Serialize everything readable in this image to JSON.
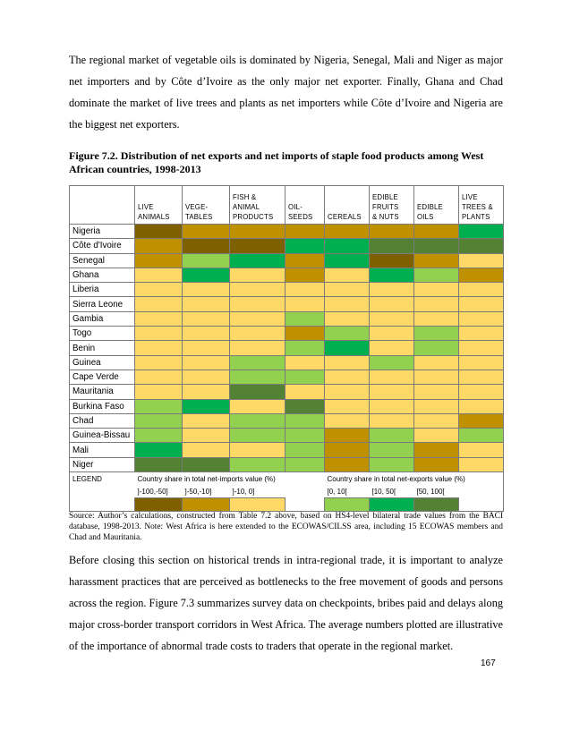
{
  "paragraph1": "The regional market of vegetable oils is dominated by Nigeria, Senegal, Mali and Niger as major net importers and by Côte d’Ivoire as the only major net exporter. Finally, Ghana and Chad dominate the market of live trees and plants as net importers while Côte d’Ivoire and Nigeria are the biggest net exporters.",
  "figure_title": "Figure 7.2. Distribution of net exports and net imports of staple food products among West African countries, 1998-2013",
  "table": {
    "headers": [
      "",
      "LIVE ANIMALS",
      "VEGE- TABLES",
      "FISH & ANIMAL PRODUCTS",
      "OIL- SEEDS",
      "CEREALS",
      "EDIBLE FRUITS & NUTS",
      "EDIBLE OILS",
      "LIVE TREES & PLANTS"
    ],
    "header_lines": [
      [
        "",
        ""
      ],
      [
        "",
        "LIVE",
        "ANIMALS"
      ],
      [
        "",
        "VEGE-",
        "TABLES"
      ],
      [
        "FISH &",
        "ANIMAL",
        "PRODUCTS"
      ],
      [
        "",
        "OIL-",
        "SEEDS"
      ],
      [
        "",
        "",
        "CEREALS"
      ],
      [
        "EDIBLE",
        "FRUITS",
        "& NUTS"
      ],
      [
        "",
        "EDIBLE",
        "OILS"
      ],
      [
        "LIVE",
        "TREES &",
        "PLANTS"
      ]
    ],
    "colors": {
      "imp_high": "#7f6000",
      "imp_mid": "#bf9000",
      "imp_low": "#ffd966",
      "exp_low": "#92d050",
      "exp_mid": "#00b050",
      "exp_high": "#548235"
    },
    "rows": [
      {
        "country": "Nigeria",
        "cells": [
          "imp_high",
          "imp_mid",
          "imp_mid",
          "imp_mid",
          "imp_mid",
          "imp_mid",
          "imp_mid",
          "exp_mid"
        ]
      },
      {
        "country": "Côte d'Ivoire",
        "cells": [
          "imp_mid",
          "imp_high",
          "imp_high",
          "exp_mid",
          "exp_mid",
          "exp_high",
          "exp_high",
          "exp_high"
        ]
      },
      {
        "country": "Senegal",
        "cells": [
          "imp_mid",
          "exp_low",
          "exp_mid",
          "imp_mid",
          "exp_mid",
          "imp_high",
          "imp_mid",
          "imp_low"
        ]
      },
      {
        "country": "Ghana",
        "cells": [
          "imp_low",
          "exp_mid",
          "imp_low",
          "imp_mid",
          "imp_low",
          "exp_mid",
          "exp_low",
          "imp_mid"
        ]
      },
      {
        "country": "Liberia",
        "cells": [
          "imp_low",
          "imp_low",
          "imp_low",
          "imp_low",
          "imp_low",
          "imp_low",
          "imp_low",
          "imp_low"
        ]
      },
      {
        "country": "Sierra Leone",
        "cells": [
          "imp_low",
          "imp_low",
          "imp_low",
          "imp_low",
          "imp_low",
          "imp_low",
          "imp_low",
          "imp_low"
        ]
      },
      {
        "country": "Gambia",
        "cells": [
          "imp_low",
          "imp_low",
          "imp_low",
          "exp_low",
          "imp_low",
          "imp_low",
          "imp_low",
          "imp_low"
        ]
      },
      {
        "country": "Togo",
        "cells": [
          "imp_low",
          "imp_low",
          "imp_low",
          "imp_mid",
          "exp_low",
          "imp_low",
          "exp_low",
          "imp_low"
        ]
      },
      {
        "country": "Benin",
        "cells": [
          "imp_low",
          "imp_low",
          "imp_low",
          "exp_low",
          "exp_mid",
          "imp_low",
          "exp_low",
          "imp_low"
        ]
      },
      {
        "country": "Guinea",
        "cells": [
          "imp_low",
          "imp_low",
          "exp_low",
          "imp_low",
          "imp_low",
          "exp_low",
          "imp_low",
          "imp_low"
        ]
      },
      {
        "country": "Cape Verde",
        "cells": [
          "imp_low",
          "imp_low",
          "exp_low",
          "exp_low",
          "imp_low",
          "imp_low",
          "imp_low",
          "imp_low"
        ]
      },
      {
        "country": "Mauritania",
        "cells": [
          "imp_low",
          "imp_low",
          "exp_high",
          "imp_low",
          "imp_low",
          "imp_low",
          "imp_low",
          "imp_low"
        ]
      },
      {
        "country": "Burkina Faso",
        "cells": [
          "exp_low",
          "exp_mid",
          "imp_low",
          "exp_high",
          "imp_low",
          "imp_low",
          "imp_low",
          "imp_low"
        ]
      },
      {
        "country": "Chad",
        "cells": [
          "exp_low",
          "imp_low",
          "exp_low",
          "exp_low",
          "imp_low",
          "imp_low",
          "imp_low",
          "imp_mid"
        ]
      },
      {
        "country": "Guinea-Bissau",
        "cells": [
          "exp_low",
          "imp_low",
          "exp_low",
          "exp_low",
          "imp_mid",
          "exp_low",
          "imp_low",
          "exp_low"
        ]
      },
      {
        "country": "Mali",
        "cells": [
          "exp_mid",
          "imp_low",
          "imp_low",
          "exp_low",
          "imp_mid",
          "exp_low",
          "imp_mid",
          "imp_low"
        ]
      },
      {
        "country": "Niger",
        "cells": [
          "exp_high",
          "exp_high",
          "exp_low",
          "exp_low",
          "imp_mid",
          "exp_low",
          "imp_mid",
          "imp_low"
        ]
      }
    ],
    "legend": {
      "label": "LEGEND",
      "imports_caption": "Country share in total net-imports value (%)",
      "exports_caption": "Country share in total net-exports value (%)",
      "ranges": [
        "]-100,-50]",
        "]-50,-10]",
        "]-10, 0]",
        "[0, 10[",
        "[10, 50[",
        "[50, 100["
      ],
      "swatches": [
        "imp_high",
        "imp_mid",
        "imp_low",
        "exp_low",
        "exp_mid",
        "exp_high"
      ]
    }
  },
  "source_note": "Source: Author’s calculations, constructed from Table 7.2 above, based on HS4-level bilateral trade values from the BACI database, 1998-2013. Note: West Africa is here extended to the ECOWAS/CILSS area, including 15 ECOWAS members and Chad and Mauritania.",
  "paragraph2": "Before closing this section on historical trends in intra-regional trade, it is important to analyze harassment practices that are perceived as bottlenecks to the free movement of goods and persons across the region. Figure 7.3 summarizes survey data on checkpoints, bribes paid and delays along major cross-border transport corridors in West Africa. The average numbers plotted are illustrative of the importance of abnormal trade costs to traders that operate in the regional market.",
  "page_number": "167"
}
